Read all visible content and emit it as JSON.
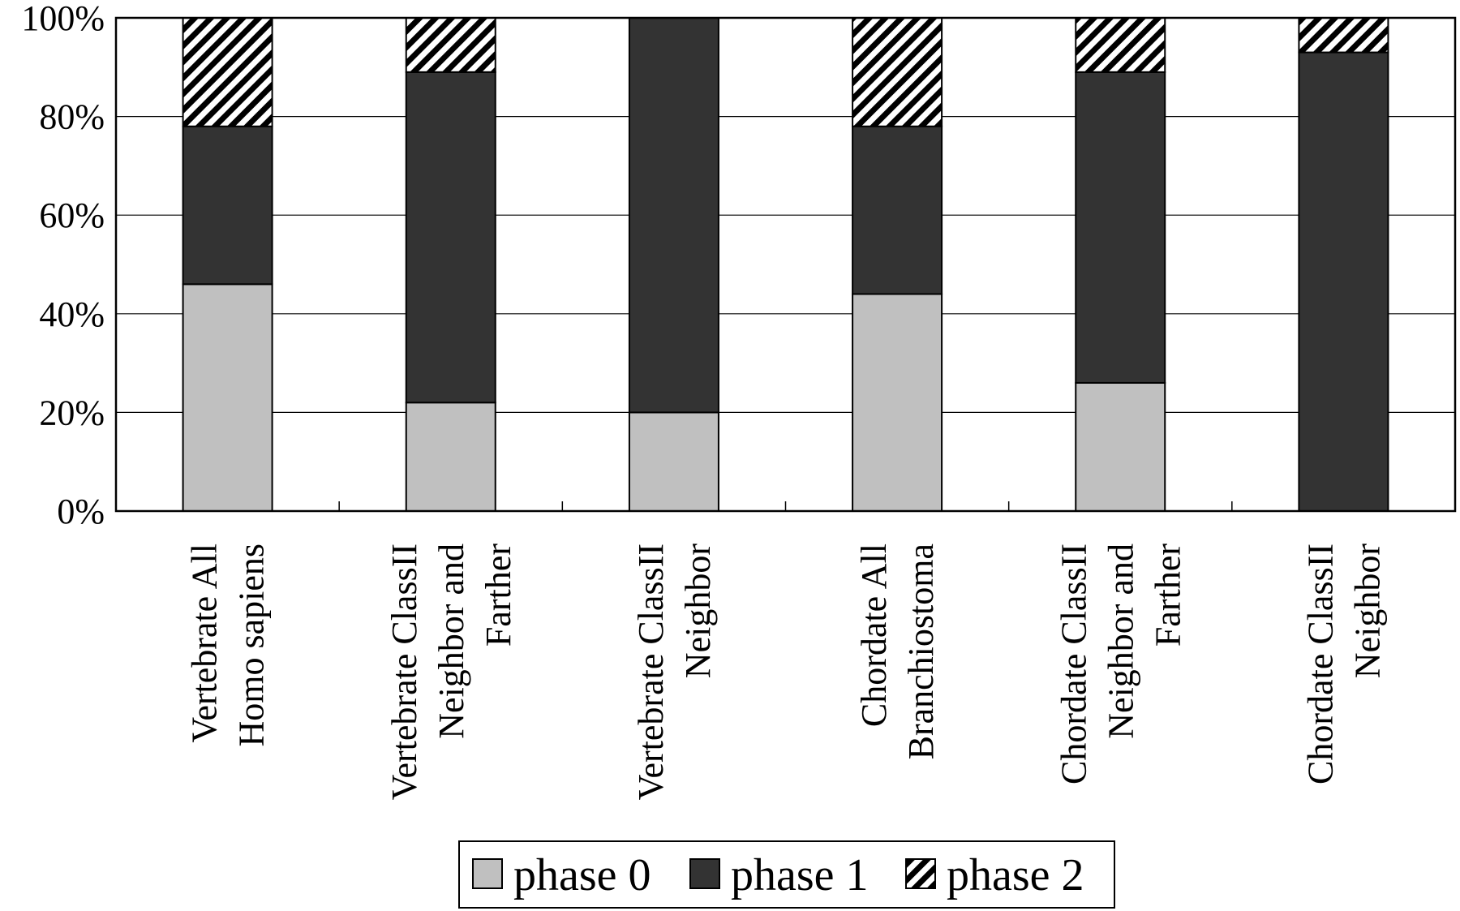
{
  "chart_data": {
    "type": "bar",
    "stacked": true,
    "normalized": true,
    "title": "",
    "xlabel": "",
    "ylabel": "",
    "ylim": [
      0,
      100
    ],
    "y_ticks": [
      "0%",
      "20%",
      "40%",
      "60%",
      "80%",
      "100%"
    ],
    "grid": "horizontal",
    "legend_position": "bottom",
    "categories": [
      [
        "Vertebrate All",
        "Homo sapiens"
      ],
      [
        "Vertebrate ClassII",
        "Neighbor and",
        "Farther"
      ],
      [
        "Vertebrate ClassII",
        "Neighbor"
      ],
      [
        "Chordate All",
        "Branchiostoma"
      ],
      [
        "Chordate ClassII",
        "Neighbor and",
        "Farther"
      ],
      [
        "Chordate ClassII",
        "Neighbor"
      ]
    ],
    "series": [
      {
        "name": "phase 0",
        "color": "#c0c0c0",
        "pattern": "solid",
        "values": [
          46,
          22,
          20,
          44,
          26,
          0
        ]
      },
      {
        "name": "phase 1",
        "color": "#333333",
        "pattern": "solid",
        "values": [
          32,
          67,
          80,
          34,
          63,
          93
        ]
      },
      {
        "name": "phase 2",
        "color": "#000000",
        "pattern": "hatch",
        "values": [
          22,
          11,
          0,
          22,
          11,
          7
        ]
      }
    ]
  }
}
